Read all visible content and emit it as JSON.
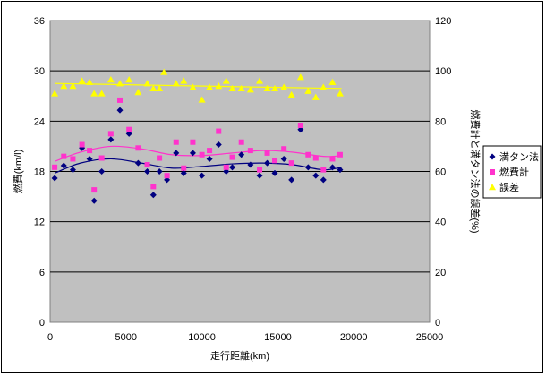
{
  "chart_data": {
    "type": "scatter",
    "xlabel": "走行距離(km)",
    "ylabel_left": "燃費(km/l)",
    "ylabel_right": "燃費計と満タン法の誤差(%)",
    "xlim": [
      0,
      25000
    ],
    "ylim_left": [
      0,
      36
    ],
    "ylim_right": [
      0,
      120
    ],
    "x_ticks": [
      0,
      5000,
      10000,
      15000,
      20000,
      25000
    ],
    "y_ticks_left": [
      0,
      6,
      12,
      18,
      24,
      30,
      36
    ],
    "y_ticks_right": [
      0,
      20,
      40,
      60,
      80,
      100,
      120
    ],
    "grid": "horizontal",
    "legend_position": "right",
    "series": [
      {
        "name": "満タン法",
        "axis": "left",
        "marker": "diamond",
        "color": "#000080",
        "points": [
          [
            300,
            17.2
          ],
          [
            900,
            18.7
          ],
          [
            1500,
            18.2
          ],
          [
            2100,
            20.8
          ],
          [
            2600,
            19.5
          ],
          [
            2900,
            14.5
          ],
          [
            3400,
            18.0
          ],
          [
            4000,
            21.8
          ],
          [
            4600,
            25.3
          ],
          [
            5200,
            22.5
          ],
          [
            5800,
            19.0
          ],
          [
            6400,
            18.0
          ],
          [
            6800,
            15.2
          ],
          [
            7200,
            18.0
          ],
          [
            7700,
            17.0
          ],
          [
            8300,
            20.2
          ],
          [
            8800,
            17.8
          ],
          [
            9400,
            20.2
          ],
          [
            10000,
            17.5
          ],
          [
            10500,
            19.5
          ],
          [
            11100,
            21.2
          ],
          [
            11600,
            18.0
          ],
          [
            12000,
            18.5
          ],
          [
            12600,
            20.0
          ],
          [
            13200,
            18.8
          ],
          [
            13800,
            17.5
          ],
          [
            14300,
            19.0
          ],
          [
            14800,
            17.8
          ],
          [
            15400,
            19.5
          ],
          [
            15900,
            17.0
          ],
          [
            16500,
            23.0
          ],
          [
            17000,
            18.5
          ],
          [
            17500,
            17.5
          ],
          [
            18000,
            17.0
          ],
          [
            18600,
            18.5
          ],
          [
            19100,
            18.2
          ]
        ],
        "trend": [
          [
            300,
            17.8
          ],
          [
            2000,
            19.0
          ],
          [
            4000,
            19.5
          ],
          [
            6000,
            19.0
          ],
          [
            8000,
            18.4
          ],
          [
            10000,
            18.6
          ],
          [
            12000,
            18.9
          ],
          [
            14000,
            19.0
          ],
          [
            16000,
            18.8
          ],
          [
            18000,
            18.2
          ],
          [
            19200,
            18.5
          ]
        ]
      },
      {
        "name": "燃費計",
        "axis": "left",
        "marker": "square",
        "color": "#ff33cc",
        "points": [
          [
            300,
            18.5
          ],
          [
            900,
            19.8
          ],
          [
            1500,
            19.5
          ],
          [
            2100,
            21.2
          ],
          [
            2600,
            20.5
          ],
          [
            2900,
            15.8
          ],
          [
            3400,
            19.6
          ],
          [
            4000,
            22.5
          ],
          [
            4600,
            26.5
          ],
          [
            5200,
            23.0
          ],
          [
            5800,
            20.8
          ],
          [
            6400,
            18.8
          ],
          [
            6800,
            16.2
          ],
          [
            7200,
            19.6
          ],
          [
            7700,
            17.5
          ],
          [
            8300,
            21.5
          ],
          [
            8800,
            18.4
          ],
          [
            9400,
            21.5
          ],
          [
            10000,
            20.0
          ],
          [
            10500,
            20.5
          ],
          [
            11100,
            22.8
          ],
          [
            11600,
            18.5
          ],
          [
            12000,
            19.7
          ],
          [
            12600,
            21.5
          ],
          [
            13200,
            20.5
          ],
          [
            13800,
            18.2
          ],
          [
            14300,
            20.2
          ],
          [
            14800,
            19.3
          ],
          [
            15400,
            20.7
          ],
          [
            15900,
            19.0
          ],
          [
            16500,
            23.5
          ],
          [
            17000,
            20.0
          ],
          [
            17500,
            19.6
          ],
          [
            18000,
            18.2
          ],
          [
            18600,
            19.5
          ],
          [
            19100,
            20.0
          ]
        ],
        "trend": [
          [
            300,
            19.2
          ],
          [
            2000,
            20.3
          ],
          [
            4000,
            21.0
          ],
          [
            6000,
            20.7
          ],
          [
            8000,
            20.0
          ],
          [
            10000,
            19.9
          ],
          [
            12000,
            20.2
          ],
          [
            14000,
            20.5
          ],
          [
            16000,
            20.3
          ],
          [
            18000,
            19.8
          ],
          [
            19200,
            19.9
          ]
        ]
      },
      {
        "name": "誤差",
        "axis": "right",
        "marker": "triangle",
        "color": "#ffff00",
        "points": [
          [
            300,
            91
          ],
          [
            900,
            94
          ],
          [
            1500,
            94
          ],
          [
            2100,
            96
          ],
          [
            2600,
            95.5
          ],
          [
            2900,
            91
          ],
          [
            3400,
            91
          ],
          [
            4000,
            96.5
          ],
          [
            4600,
            95
          ],
          [
            5200,
            96.5
          ],
          [
            5800,
            91.5
          ],
          [
            6400,
            95
          ],
          [
            6800,
            93
          ],
          [
            7200,
            93
          ],
          [
            7500,
            99.5
          ],
          [
            8300,
            95
          ],
          [
            8800,
            96
          ],
          [
            9400,
            93.5
          ],
          [
            10000,
            88.5
          ],
          [
            10500,
            93.5
          ],
          [
            11100,
            94
          ],
          [
            11600,
            96
          ],
          [
            12000,
            93
          ],
          [
            12600,
            93
          ],
          [
            13200,
            92.5
          ],
          [
            13800,
            96
          ],
          [
            14300,
            93
          ],
          [
            14800,
            93
          ],
          [
            15400,
            93.5
          ],
          [
            15900,
            90.5
          ],
          [
            16500,
            97.5
          ],
          [
            17000,
            92
          ],
          [
            17500,
            89.5
          ],
          [
            18000,
            93.5
          ],
          [
            18600,
            95.5
          ],
          [
            19100,
            91
          ]
        ],
        "trend": [
          [
            300,
            95
          ],
          [
            19200,
            93
          ]
        ]
      }
    ]
  }
}
